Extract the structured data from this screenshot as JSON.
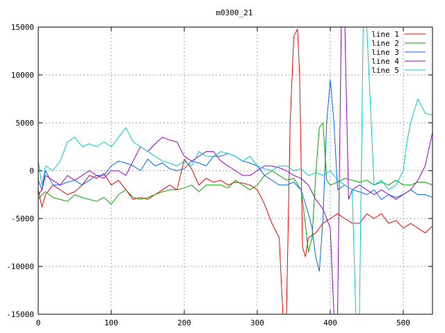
{
  "chart_data": {
    "type": "line",
    "title": "m0300_21",
    "xlabel": "",
    "ylabel": "",
    "xlim": [
      0,
      540
    ],
    "ylim": [
      -15000,
      15000
    ],
    "xticks": [
      0,
      100,
      200,
      300,
      400,
      500
    ],
    "yticks": [
      -15000,
      -10000,
      -5000,
      0,
      5000,
      10000,
      15000
    ],
    "grid": true,
    "legend_position": "top-right",
    "series": [
      {
        "name": "line 1",
        "color": "#ff0000",
        "x": [
          0,
          5,
          10,
          20,
          30,
          40,
          50,
          60,
          70,
          80,
          90,
          100,
          110,
          120,
          130,
          140,
          150,
          160,
          170,
          180,
          190,
          200,
          210,
          220,
          230,
          240,
          250,
          260,
          270,
          280,
          290,
          300,
          310,
          320,
          330,
          335,
          340,
          345,
          350,
          355,
          358,
          362,
          366,
          370,
          380,
          390,
          400,
          410,
          420,
          430,
          440,
          450,
          460,
          470,
          480,
          490,
          500,
          510,
          520,
          530,
          540
        ],
        "y": [
          -2000,
          -3800,
          -2500,
          -1500,
          -2000,
          -2500,
          -2200,
          -1500,
          -500,
          -800,
          -300,
          -1500,
          -1000,
          -2000,
          -3000,
          -2800,
          -3000,
          -2500,
          -2000,
          -1500,
          -2000,
          1200,
          200,
          -1500,
          -800,
          -1200,
          -1000,
          -1500,
          -1200,
          -1300,
          -1500,
          -2000,
          -3500,
          -5500,
          -7000,
          -15000,
          -15000,
          5000,
          14000,
          14800,
          10000,
          -8000,
          -9000,
          -7000,
          -6500,
          -5500,
          -5000,
          -4500,
          -5000,
          -5500,
          -5500,
          -4500,
          -5000,
          -4500,
          -5500,
          -5200,
          -6000,
          -5500,
          -6000,
          -6500,
          -5800
        ]
      },
      {
        "name": "line 2",
        "color": "#00aa00",
        "x": [
          0,
          5,
          10,
          20,
          30,
          40,
          50,
          60,
          70,
          80,
          90,
          100,
          110,
          120,
          130,
          140,
          150,
          160,
          170,
          180,
          190,
          200,
          210,
          220,
          230,
          240,
          250,
          260,
          270,
          280,
          290,
          300,
          310,
          320,
          330,
          340,
          350,
          360,
          365,
          370,
          375,
          380,
          385,
          390,
          395,
          400,
          410,
          420,
          430,
          440,
          450,
          460,
          470,
          480,
          490,
          500,
          510,
          520,
          530,
          540
        ],
        "y": [
          -3000,
          -2500,
          -2200,
          -2800,
          -3000,
          -3200,
          -2500,
          -2800,
          -3000,
          -3200,
          -2800,
          -3500,
          -2500,
          -2000,
          -2800,
          -3000,
          -2800,
          -2500,
          -2200,
          -2000,
          -2000,
          -1800,
          -1500,
          -2200,
          -1500,
          -1500,
          -1500,
          -1800,
          -1000,
          -1500,
          -2000,
          -1500,
          -500,
          0,
          -500,
          -1000,
          -800,
          -2000,
          -5000,
          -8500,
          -7000,
          -500,
          4500,
          5000,
          -1000,
          -1500,
          -1200,
          -800,
          -1000,
          -1200,
          -1000,
          -1500,
          -1200,
          -1500,
          -1000,
          -1500,
          -1500,
          -1200,
          -1200,
          -1500
        ]
      },
      {
        "name": "line 3",
        "color": "#0066ff",
        "x": [
          0,
          5,
          10,
          20,
          30,
          40,
          50,
          60,
          70,
          80,
          90,
          100,
          110,
          120,
          130,
          140,
          150,
          160,
          170,
          180,
          190,
          200,
          210,
          220,
          230,
          240,
          250,
          260,
          270,
          280,
          290,
          300,
          310,
          320,
          330,
          340,
          350,
          360,
          370,
          375,
          380,
          385,
          390,
          395,
          400,
          405,
          410,
          420,
          430,
          440,
          450,
          460,
          470,
          480,
          490,
          500,
          510,
          520,
          530,
          540
        ],
        "y": [
          -1000,
          -2000,
          0,
          -1500,
          -1500,
          -1200,
          -1000,
          -1500,
          -1000,
          -500,
          -500,
          500,
          1000,
          800,
          500,
          0,
          1200,
          500,
          800,
          200,
          0,
          200,
          1000,
          800,
          500,
          1500,
          1500,
          1800,
          1500,
          1000,
          800,
          500,
          -500,
          -1000,
          -1500,
          -1500,
          -1200,
          -2000,
          -4500,
          -6000,
          -9000,
          -10500,
          -5000,
          5000,
          9500,
          5000,
          -2000,
          -1500,
          -2000,
          -2200,
          -2500,
          -2000,
          -3000,
          -2500,
          -2800,
          -2500,
          -2000,
          -2500,
          -2500,
          -2800
        ]
      },
      {
        "name": "line 4",
        "color": "#9900cc",
        "x": [
          0,
          5,
          10,
          20,
          30,
          40,
          50,
          60,
          70,
          80,
          90,
          100,
          110,
          120,
          130,
          140,
          150,
          160,
          170,
          180,
          190,
          200,
          210,
          220,
          230,
          240,
          250,
          260,
          270,
          280,
          290,
          300,
          310,
          320,
          330,
          340,
          350,
          360,
          370,
          380,
          390,
          395,
          400,
          405,
          410,
          415,
          420,
          425,
          430,
          440,
          450,
          460,
          470,
          480,
          490,
          500,
          510,
          520,
          530,
          540
        ],
        "y": [
          -2500,
          -2000,
          -500,
          -1000,
          -1500,
          -500,
          -1000,
          -500,
          0,
          -500,
          -800,
          0,
          0,
          -500,
          1000,
          2500,
          2000,
          2800,
          3500,
          3200,
          3000,
          1500,
          1000,
          1500,
          2000,
          2000,
          1000,
          500,
          0,
          -500,
          -500,
          0,
          500,
          500,
          300,
          0,
          -500,
          -800,
          -1500,
          -3000,
          -4000,
          -5000,
          -6000,
          -15000,
          -15000,
          15000,
          15000,
          -3000,
          -2000,
          -1500,
          -2000,
          -2500,
          -2000,
          -2500,
          -3000,
          -2500,
          -2000,
          -1000,
          500,
          4000
        ]
      },
      {
        "name": "line 5",
        "color": "#00cccc",
        "x": [
          0,
          5,
          10,
          20,
          30,
          40,
          50,
          60,
          70,
          80,
          90,
          100,
          110,
          120,
          130,
          140,
          150,
          160,
          170,
          180,
          190,
          200,
          210,
          220,
          230,
          240,
          250,
          260,
          270,
          280,
          290,
          300,
          310,
          320,
          330,
          340,
          350,
          360,
          370,
          380,
          390,
          400,
          410,
          420,
          430,
          435,
          440,
          445,
          450,
          460,
          470,
          480,
          490,
          500,
          505,
          510,
          520,
          530,
          540
        ],
        "y": [
          1000,
          -1500,
          500,
          0,
          1000,
          3000,
          3500,
          2500,
          2800,
          2500,
          3000,
          2500,
          3500,
          4500,
          3000,
          2500,
          2000,
          1500,
          1000,
          800,
          500,
          1000,
          500,
          2000,
          1500,
          1500,
          2000,
          1800,
          1500,
          1000,
          1500,
          500,
          200,
          0,
          500,
          500,
          0,
          200,
          -500,
          -200,
          -500,
          0,
          -1000,
          -1500,
          -2000,
          -15000,
          -15000,
          15000,
          15000,
          -1500,
          -1000,
          -2000,
          -1500,
          0,
          3000,
          5000,
          7500,
          6000,
          5800
        ]
      }
    ]
  }
}
